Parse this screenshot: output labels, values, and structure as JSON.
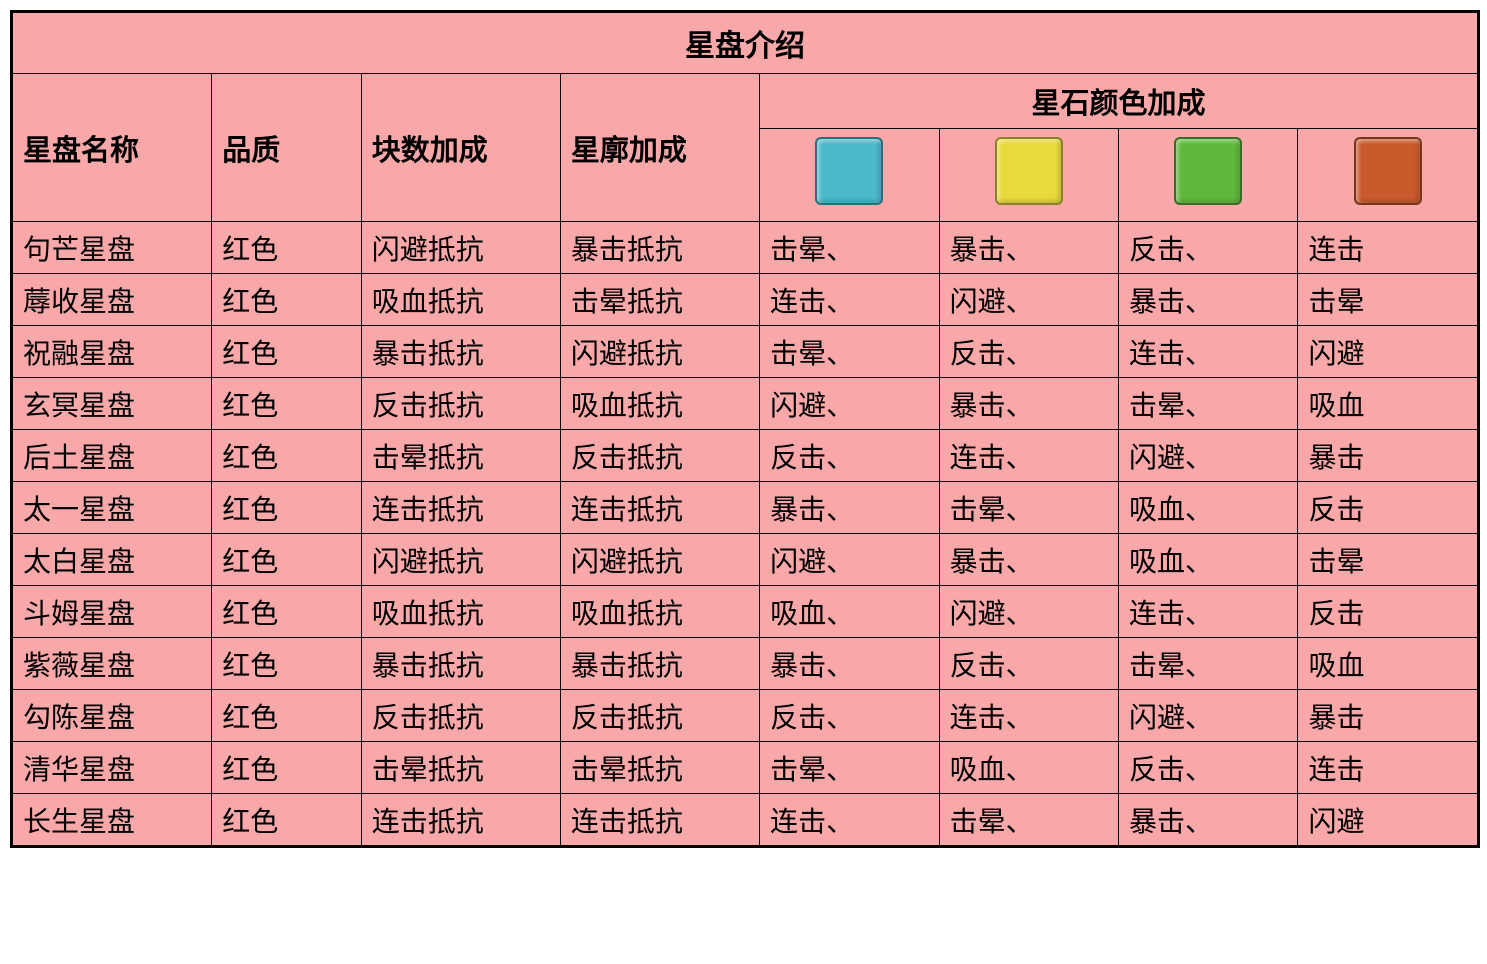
{
  "title": "星盘介绍",
  "headers": {
    "name": "星盘名称",
    "quality": "品质",
    "block_bonus": "块数加成",
    "outline_bonus": "星廓加成",
    "color_bonus": "星石颜色加成"
  },
  "swatches": [
    {
      "color": "#4bb8cc",
      "name": "blue-swatch"
    },
    {
      "color": "#e8d93c",
      "name": "yellow-swatch"
    },
    {
      "color": "#5fb83c",
      "name": "green-swatch"
    },
    {
      "color": "#c85a2c",
      "name": "orange-swatch"
    }
  ],
  "rows": [
    {
      "name": "句芒星盘",
      "quality": "红色",
      "block": "闪避抵抗",
      "outline": "暴击抵抗",
      "c1": "击晕、",
      "c2": "暴击、",
      "c3": "反击、",
      "c4": "连击"
    },
    {
      "name": "蓐收星盘",
      "quality": "红色",
      "block": "吸血抵抗",
      "outline": "击晕抵抗",
      "c1": "连击、",
      "c2": "闪避、",
      "c3": "暴击、",
      "c4": "击晕"
    },
    {
      "name": "祝融星盘",
      "quality": "红色",
      "block": "暴击抵抗",
      "outline": "闪避抵抗",
      "c1": "击晕、",
      "c2": "反击、",
      "c3": "连击、",
      "c4": "闪避"
    },
    {
      "name": "玄冥星盘",
      "quality": "红色",
      "block": "反击抵抗",
      "outline": "吸血抵抗",
      "c1": "闪避、",
      "c2": "暴击、",
      "c3": "击晕、",
      "c4": "吸血"
    },
    {
      "name": "后土星盘",
      "quality": "红色",
      "block": "击晕抵抗",
      "outline": "反击抵抗",
      "c1": "反击、",
      "c2": "连击、",
      "c3": "闪避、",
      "c4": "暴击"
    },
    {
      "name": "太一星盘",
      "quality": "红色",
      "block": "连击抵抗",
      "outline": "连击抵抗",
      "c1": "暴击、",
      "c2": "击晕、",
      "c3": "吸血、",
      "c4": "反击"
    },
    {
      "name": "太白星盘",
      "quality": "红色",
      "block": "闪避抵抗",
      "outline": "闪避抵抗",
      "c1": "闪避、",
      "c2": "暴击、",
      "c3": "吸血、",
      "c4": "击晕"
    },
    {
      "name": "斗姆星盘",
      "quality": "红色",
      "block": "吸血抵抗",
      "outline": "吸血抵抗",
      "c1": "吸血、",
      "c2": "闪避、",
      "c3": "连击、",
      "c4": "反击"
    },
    {
      "name": "紫薇星盘",
      "quality": "红色",
      "block": "暴击抵抗",
      "outline": "暴击抵抗",
      "c1": "暴击、",
      "c2": "反击、",
      "c3": "击晕、",
      "c4": "吸血"
    },
    {
      "name": "勾陈星盘",
      "quality": "红色",
      "block": "反击抵抗",
      "outline": "反击抵抗",
      "c1": "反击、",
      "c2": "连击、",
      "c3": "闪避、",
      "c4": "暴击"
    },
    {
      "name": "清华星盘",
      "quality": "红色",
      "block": "击晕抵抗",
      "outline": "击晕抵抗",
      "c1": "击晕、",
      "c2": "吸血、",
      "c3": "反击、",
      "c4": "连击"
    },
    {
      "name": "长生星盘",
      "quality": "红色",
      "block": "连击抵抗",
      "outline": "连击抵抗",
      "c1": "连击、",
      "c2": "击晕、",
      "c3": "暴击、",
      "c4": "闪避"
    }
  ],
  "colors": {
    "background": "#f8a8a8",
    "border": "#000000",
    "text": "#000000"
  }
}
